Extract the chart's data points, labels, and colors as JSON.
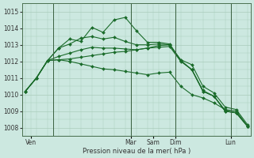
{
  "background_color": "#cce8e0",
  "grid_color": "#aaccbb",
  "line_color": "#1a6b2a",
  "xlabel": "Pression niveau de la mer( hPa )",
  "ylim": [
    1007.5,
    1015.5
  ],
  "yticks": [
    1008,
    1009,
    1010,
    1011,
    1012,
    1013,
    1014,
    1015
  ],
  "lines": [
    [
      1010.2,
      1011.0,
      1012.05,
      1012.8,
      1013.35,
      1013.2,
      1014.05,
      1013.75,
      1014.5,
      1014.65,
      1013.85,
      1013.15,
      1013.15,
      1013.05,
      1012.05,
      1011.5,
      1010.25,
      1009.9,
      1009.05,
      1008.9,
      1008.1
    ],
    [
      1010.2,
      1011.0,
      1012.05,
      1012.8,
      1013.05,
      1013.4,
      1013.5,
      1013.35,
      1013.45,
      1013.2,
      1013.0,
      1013.0,
      1013.05,
      1013.0,
      1012.05,
      1011.5,
      1010.2,
      1009.9,
      1009.0,
      1008.9,
      1008.1
    ],
    [
      1010.2,
      1011.0,
      1012.05,
      1012.3,
      1012.5,
      1012.7,
      1012.85,
      1012.8,
      1012.8,
      1012.75,
      1012.7,
      1012.8,
      1012.95,
      1013.0,
      1012.1,
      1011.8,
      1010.5,
      1010.1,
      1009.25,
      1009.1,
      1008.2
    ],
    [
      1010.2,
      1011.0,
      1012.05,
      1012.1,
      1012.15,
      1012.25,
      1012.35,
      1012.45,
      1012.55,
      1012.6,
      1012.7,
      1012.8,
      1012.85,
      1012.9,
      1012.0,
      1011.5,
      1010.2,
      1009.9,
      1009.0,
      1008.9,
      1008.1
    ],
    [
      1010.2,
      1011.0,
      1012.05,
      1012.1,
      1012.0,
      1011.85,
      1011.7,
      1011.55,
      1011.5,
      1011.4,
      1011.3,
      1011.2,
      1011.3,
      1011.35,
      1010.5,
      1010.0,
      1009.8,
      1009.5,
      1009.1,
      1009.0,
      1008.1
    ]
  ],
  "x_values": [
    0,
    1,
    2,
    3,
    4,
    5,
    6,
    7,
    8,
    9,
    10,
    11,
    12,
    13,
    14,
    15,
    16,
    17,
    18,
    19,
    20
  ],
  "xlim": [
    -0.3,
    20.3
  ],
  "vline_positions": [
    2.5,
    9.5,
    13.5,
    18.5
  ],
  "xtick_positions": [
    0.5,
    9.5,
    11.5,
    13.5,
    18.5
  ],
  "xtick_labels": [
    "Ven",
    "Mar",
    "Sam",
    "Dim",
    "Lun"
  ],
  "marker": "D",
  "markersize": 2.0,
  "linewidth": 0.8
}
